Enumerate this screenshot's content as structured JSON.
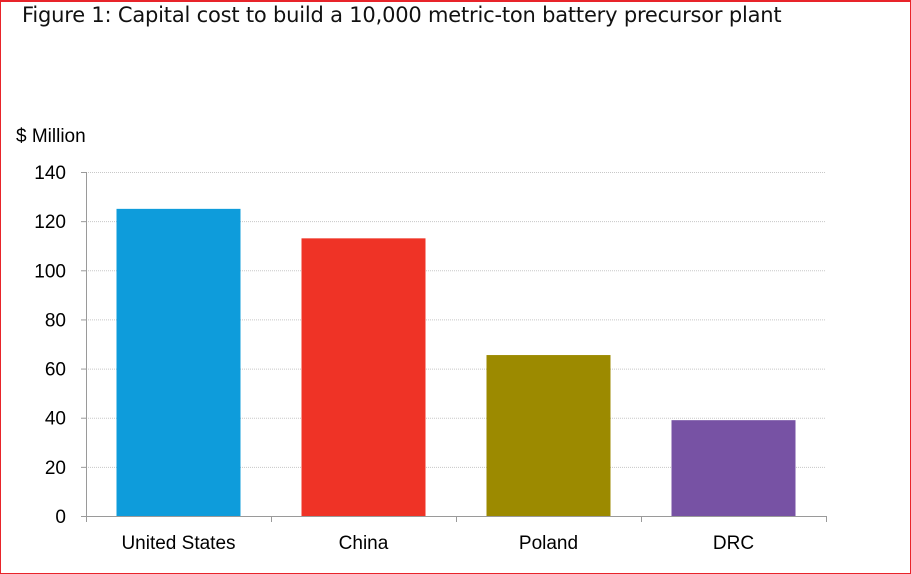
{
  "chart_data": {
    "type": "bar",
    "title": "Figure 1: Capital cost to build a 10,000 metric-ton battery precursor plant",
    "ylabel": "$ Million",
    "xlabel": "",
    "categories": [
      "United States",
      "China",
      "Poland",
      "DRC"
    ],
    "values": [
      125,
      113,
      65.5,
      39
    ],
    "colors": [
      "#0e9cdb",
      "#ef3326",
      "#9c8a00",
      "#7752a4"
    ],
    "ylim": [
      0,
      140
    ],
    "yticks": [
      0,
      20,
      40,
      60,
      80,
      100,
      120,
      140
    ],
    "grid": true,
    "legend": "none"
  },
  "colors": {
    "frame_border": "#e8242a",
    "gridline": "#c8c8c8",
    "axis": "#9a9a9a"
  }
}
